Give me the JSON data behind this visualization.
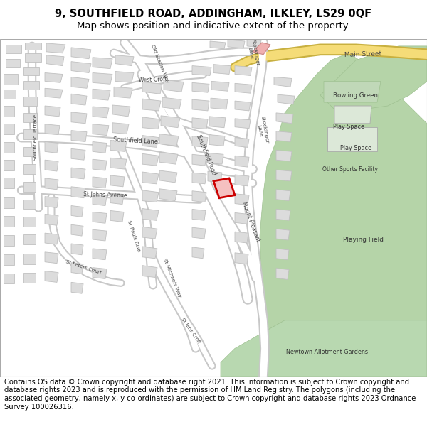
{
  "title_line1": "9, SOUTHFIELD ROAD, ADDINGHAM, ILKLEY, LS29 0QF",
  "title_line2": "Map shows position and indicative extent of the property.",
  "footer_text": "Contains OS data © Crown copyright and database right 2021. This information is subject to Crown copyright and database rights 2023 and is reproduced with the permission of HM Land Registry. The polygons (including the associated geometry, namely x, y co-ordinates) are subject to Crown copyright and database rights 2023 Ordnance Survey 100026316.",
  "map_bg": "#f8f8f7",
  "road_color": "#ffffff",
  "road_outline": "#c8c8c8",
  "building_color": "#dcdcdc",
  "building_outline": "#c0c0c0",
  "green_color": "#b8d4ac",
  "green_outline": "#9ec090",
  "green_light": "#c8dfc0",
  "yellow_road": "#f5dc78",
  "yellow_outline": "#c8b040",
  "highlight_red": "#cc0000",
  "highlight_fill": "#f5c0c0",
  "pink_fill": "#f0b0b0",
  "title_fontsize": 10.5,
  "subtitle_fontsize": 9.5,
  "footer_fontsize": 7.2,
  "label_color": "#444444"
}
